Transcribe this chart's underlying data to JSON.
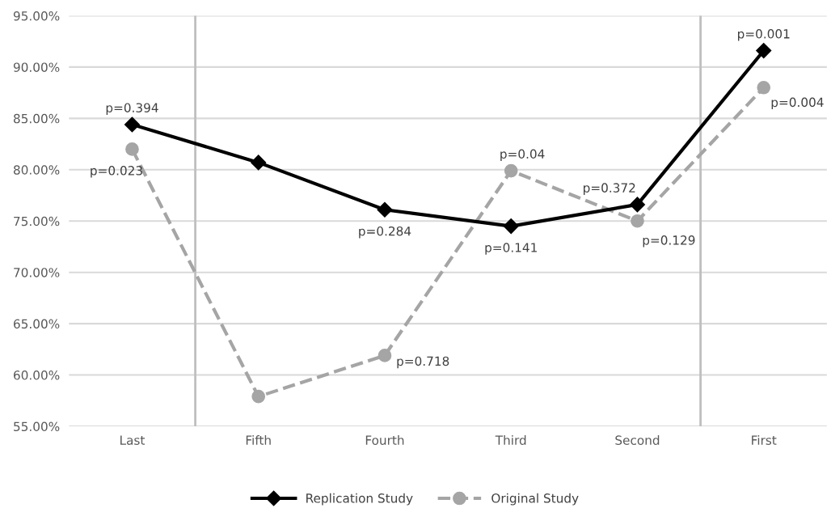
{
  "chart_data": {
    "type": "line",
    "categories": [
      "Last",
      "Fifth",
      "Fourth",
      "Third",
      "Second",
      "First"
    ],
    "series": [
      {
        "name": "Replication Study",
        "color": "#000000",
        "marker": "diamond",
        "line_style": "solid",
        "values": [
          84.4,
          80.7,
          76.1,
          74.5,
          76.6,
          91.6
        ]
      },
      {
        "name": "Original Study",
        "color": "#a5a5a5",
        "marker": "circle",
        "line_style": "dashed",
        "values": [
          82.0,
          57.9,
          61.9,
          79.9,
          75.0,
          88.0
        ]
      }
    ],
    "annotations": [
      {
        "text": "p=0.394",
        "x": "Last",
        "y": 84.4
      },
      {
        "text": "p=0.284",
        "x": "Fourth",
        "y": 76.1
      },
      {
        "text": "p=0.141",
        "x": "Third",
        "y": 74.5
      },
      {
        "text": "p=0.372",
        "x": "Second",
        "y": 76.6
      },
      {
        "text": "p=0.001",
        "x": "First",
        "y": 91.6
      },
      {
        "text": "p=0.023",
        "x": "Last",
        "y": 82.0
      },
      {
        "text": "p=0.718",
        "x": "Fourth",
        "y": 61.9
      },
      {
        "text": "p=0.04",
        "x": "Third",
        "y": 79.9
      },
      {
        "text": "p=0.129",
        "x": "Second",
        "y": 75.0
      },
      {
        "text": "p=0.004",
        "x": "First",
        "y": 88.0
      }
    ],
    "ylim": [
      55,
      95
    ],
    "yticks": [
      {
        "value": 55,
        "label": "55.00%"
      },
      {
        "value": 60,
        "label": "60.00%"
      },
      {
        "value": 65,
        "label": "65.00%"
      },
      {
        "value": 70,
        "label": "70.00%"
      },
      {
        "value": 75,
        "label": "75.00%"
      },
      {
        "value": 80,
        "label": "80.00%"
      },
      {
        "value": 85,
        "label": "85.00%"
      },
      {
        "value": 90,
        "label": "90.00%"
      },
      {
        "value": 95,
        "label": "95.00%"
      }
    ],
    "grid": "y",
    "legend": "bottom"
  }
}
